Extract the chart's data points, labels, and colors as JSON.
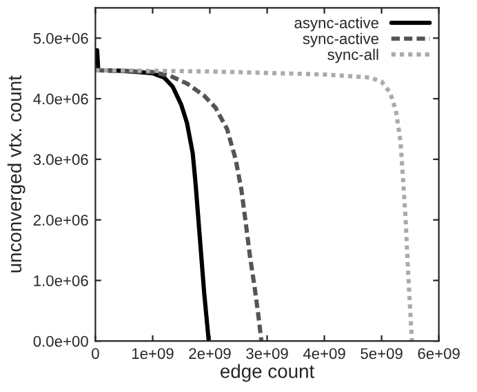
{
  "chart_data": {
    "type": "line",
    "xlabel": "edge count",
    "ylabel": "unconverged vtx. count",
    "xlim": [
      0,
      6000000000
    ],
    "ylim": [
      0,
      5500000
    ],
    "xticks": [
      {
        "value": 0,
        "label": "0"
      },
      {
        "value": 1000000000,
        "label": "1e+09"
      },
      {
        "value": 2000000000,
        "label": "2e+09"
      },
      {
        "value": 3000000000,
        "label": "3e+09"
      },
      {
        "value": 4000000000,
        "label": "4e+09"
      },
      {
        "value": 5000000000,
        "label": "5e+09"
      },
      {
        "value": 6000000000,
        "label": "6e+09"
      }
    ],
    "yticks": [
      {
        "value": 0,
        "label": "0.0e+00"
      },
      {
        "value": 1000000,
        "label": "1.0e+06"
      },
      {
        "value": 2000000,
        "label": "2.0e+06"
      },
      {
        "value": 3000000,
        "label": "3.0e+06"
      },
      {
        "value": 4000000,
        "label": "4.0e+06"
      },
      {
        "value": 5000000,
        "label": "5.0e+06"
      }
    ],
    "legend": "top right",
    "grid": false,
    "series": [
      {
        "name": "async-active",
        "color": "#000000",
        "line_style": "solid",
        "x": [
          0,
          30000000,
          50000000,
          500000000,
          1000000000,
          1200000000,
          1350000000,
          1500000000,
          1600000000,
          1700000000,
          1750000000,
          1800000000,
          1850000000,
          1900000000,
          1950000000,
          1980000000
        ],
        "values": [
          4800000,
          4800000,
          4470000,
          4460000,
          4420000,
          4350000,
          4200000,
          3900000,
          3600000,
          3100000,
          2600000,
          2000000,
          1400000,
          800000,
          300000,
          0
        ]
      },
      {
        "name": "sync-active",
        "color": "#555555",
        "line_style": "dashed",
        "x": [
          0,
          1000000000,
          1300000000,
          1600000000,
          1900000000,
          2100000000,
          2300000000,
          2450000000,
          2550000000,
          2620000000,
          2700000000,
          2780000000,
          2850000000,
          2900000000
        ],
        "values": [
          4470000,
          4440000,
          4380000,
          4250000,
          4050000,
          3850000,
          3500000,
          3000000,
          2500000,
          2000000,
          1400000,
          900000,
          400000,
          0
        ]
      },
      {
        "name": "sync-all",
        "color": "#aaaaaa",
        "line_style": "dotted",
        "x": [
          0,
          2000000000,
          4000000000,
          4800000000,
          5000000000,
          5150000000,
          5250000000,
          5330000000,
          5380000000,
          5420000000,
          5460000000,
          5500000000,
          5530000000
        ],
        "values": [
          4470000,
          4450000,
          4400000,
          4350000,
          4280000,
          4100000,
          3800000,
          3300000,
          2600000,
          2000000,
          1200000,
          500000,
          0
        ]
      }
    ]
  }
}
